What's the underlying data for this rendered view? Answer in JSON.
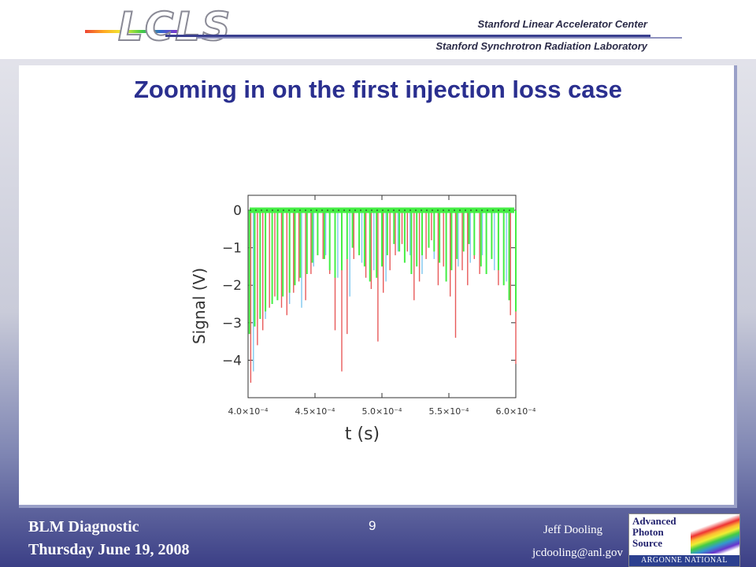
{
  "header": {
    "logo_text": "LCLS",
    "org_line1": "Stanford Linear Accelerator Center",
    "org_line2": "Stanford Synchrotron Radiation Laboratory"
  },
  "slide": {
    "title": "Zooming in on the first injection loss case"
  },
  "footer": {
    "left_line1": "BLM Diagnostic",
    "left_line2": "Thursday June 19, 2008",
    "page_number": "9",
    "author": "Jeff Dooling",
    "email": "jcdooling@anl.gov",
    "aps_logo": {
      "line1": "Advanced",
      "line2": "Photon",
      "line3": "Source",
      "bar": "ARGONNE NATIONAL LABORATORY"
    }
  },
  "colors": {
    "title": "#2a2f8f",
    "red": "#e85a5a",
    "cyan": "#7ec8f0",
    "green": "#44ee44"
  },
  "chart_data": {
    "type": "line",
    "title": "",
    "xlabel": "t  (s)",
    "ylabel": "Signal  (V)",
    "xlim": [
      0.0004,
      0.0006
    ],
    "ylim": [
      -5.0,
      0.4
    ],
    "yticks": [
      0,
      -1,
      -2,
      -3,
      -4
    ],
    "ytick_labels": [
      "0",
      "−1",
      "−2",
      "−3",
      "−4"
    ],
    "xticks": [
      0.0004,
      0.00045,
      0.0005,
      0.00055,
      0.0006
    ],
    "xtick_labels": [
      "4.0×10⁻⁴",
      "4.5×10⁻⁴",
      "5.0×10⁻⁴",
      "5.5×10⁻⁴",
      "6.0×10⁻⁴"
    ],
    "series": [
      {
        "color": "red",
        "x": [
          0.000402,
          0.000407,
          0.000411,
          0.000416,
          0.00042,
          0.000425,
          0.000429,
          0.000434,
          0.000438,
          0.000443,
          0.000447,
          0.000452,
          0.000456,
          0.000461,
          0.000465,
          0.00047,
          0.000474,
          0.000479,
          0.000483,
          0.000488,
          0.000492,
          0.000497,
          0.000501,
          0.000506,
          0.00051,
          0.000515,
          0.000519,
          0.000524,
          0.000528,
          0.000533,
          0.000537,
          0.000542,
          0.000546,
          0.000551,
          0.000555,
          0.00056,
          0.000564,
          0.000569,
          0.000573,
          0.000578,
          0.000582,
          0.000587,
          0.000591,
          0.000596,
          0.0006
        ],
        "y": [
          -4.6,
          -3.6,
          -3.2,
          -2.6,
          -2.3,
          -2.6,
          -2.8,
          -2.2,
          -1.9,
          -2.4,
          -1.7,
          -1.0,
          -1.3,
          -1.7,
          -3.2,
          -4.3,
          -3.3,
          -1.3,
          -1.0,
          -1.8,
          -2.1,
          -3.5,
          -2.2,
          -1.6,
          -1.2,
          -0.9,
          -1.1,
          -2.4,
          -1.9,
          -1.3,
          -0.8,
          -2.0,
          -1.5,
          -2.3,
          -3.4,
          -1.6,
          -2.0,
          -1.3,
          -1.7,
          -0.9,
          -1.2,
          -2.0,
          -1.4,
          -2.8,
          -4.1
        ]
      },
      {
        "color": "cyan",
        "x": [
          0.000404,
          0.000413,
          0.000422,
          0.000431,
          0.00044,
          0.000449,
          0.000458,
          0.000467,
          0.000476,
          0.000485,
          0.000494,
          0.000503,
          0.000512,
          0.000521,
          0.00053,
          0.000539,
          0.000548,
          0.000557,
          0.000566,
          0.000575,
          0.000584,
          0.000593
        ],
        "y": [
          -4.3,
          -2.9,
          -2.1,
          -2.5,
          -2.6,
          -1.5,
          -1.2,
          -1.8,
          -2.3,
          -1.4,
          -1.6,
          -1.9,
          -1.1,
          -1.2,
          -1.7,
          -1.3,
          -1.8,
          -1.5,
          -1.4,
          -1.2,
          -1.6,
          -1.9
        ]
      },
      {
        "color": "green",
        "x": [
          0.000401,
          0.000405,
          0.000409,
          0.000413,
          0.000418,
          0.000422,
          0.000426,
          0.000431,
          0.000435,
          0.000439,
          0.000444,
          0.000448,
          0.000452,
          0.000457,
          0.000461,
          0.000465,
          0.00047,
          0.000474,
          0.000478,
          0.000483,
          0.000487,
          0.000491,
          0.000496,
          0.0005,
          0.000504,
          0.000509,
          0.000513,
          0.000517,
          0.000522,
          0.000526,
          0.00053,
          0.000535,
          0.000539,
          0.000543,
          0.000548,
          0.000552,
          0.000556,
          0.000561,
          0.000565,
          0.000569,
          0.000574,
          0.000578,
          0.000582,
          0.000587,
          0.000591,
          0.000595,
          0.0006
        ],
        "y": [
          -3.3,
          -3.1,
          -2.9,
          -2.7,
          -2.5,
          -2.4,
          -2.3,
          -2.2,
          -2.0,
          -1.8,
          -1.7,
          -1.4,
          -1.2,
          -1.3,
          -1.6,
          -1.8,
          -1.6,
          -1.3,
          -1.0,
          -1.2,
          -1.5,
          -1.9,
          -1.8,
          -1.5,
          -1.2,
          -0.9,
          -1.1,
          -1.4,
          -1.7,
          -1.5,
          -1.2,
          -1.0,
          -1.1,
          -1.4,
          -1.9,
          -1.6,
          -1.3,
          -1.1,
          -0.9,
          -1.2,
          -1.5,
          -1.7,
          -1.3,
          -1.6,
          -2.0,
          -2.4,
          -2.7
        ]
      }
    ]
  }
}
